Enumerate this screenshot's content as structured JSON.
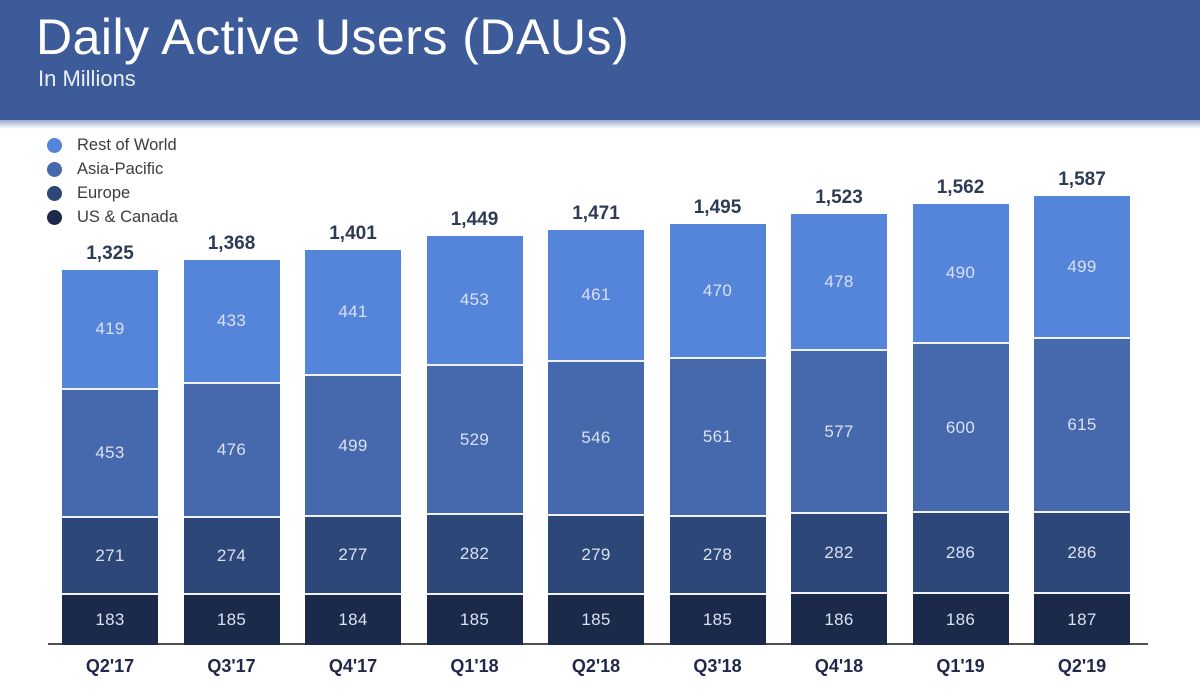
{
  "header": {
    "title": "Daily Active Users (DAUs)",
    "subtitle": "In Millions",
    "background_color": "#3d5b99"
  },
  "legend": {
    "position": "top-left",
    "items": [
      {
        "label": "Rest of World",
        "color": "#5584db"
      },
      {
        "label": "Asia-Pacific",
        "color": "#4668ac"
      },
      {
        "label": "Europe",
        "color": "#2d4878"
      },
      {
        "label": "US & Canada",
        "color": "#1b2a4a"
      }
    ]
  },
  "chart_data": {
    "type": "bar",
    "stacked": true,
    "title": "Daily Active Users (DAUs)",
    "subtitle": "In Millions",
    "unit": "millions of users",
    "xlabel": "",
    "ylabel": "",
    "grid": false,
    "categories": [
      "Q2'17",
      "Q3'17",
      "Q4'17",
      "Q1'18",
      "Q2'18",
      "Q3'18",
      "Q4'18",
      "Q1'19",
      "Q2'19"
    ],
    "series": [
      {
        "name": "Rest of World",
        "color": "#5584db",
        "values": [
          419,
          433,
          441,
          453,
          461,
          470,
          478,
          490,
          499
        ]
      },
      {
        "name": "Asia-Pacific",
        "color": "#4668ac",
        "values": [
          453,
          476,
          499,
          529,
          546,
          561,
          577,
          600,
          615
        ]
      },
      {
        "name": "Europe",
        "color": "#2d4878",
        "values": [
          271,
          274,
          277,
          282,
          279,
          278,
          282,
          286,
          286
        ]
      },
      {
        "name": "US & Canada",
        "color": "#1b2a4a",
        "values": [
          183,
          185,
          184,
          185,
          185,
          185,
          186,
          186,
          187
        ]
      }
    ],
    "totals": [
      1325,
      1368,
      1401,
      1449,
      1471,
      1495,
      1523,
      1562,
      1587
    ],
    "totals_formatted": [
      "1,325",
      "1,368",
      "1,401",
      "1,449",
      "1,471",
      "1,495",
      "1,523",
      "1,562",
      "1,587"
    ],
    "ylim": [
      0,
      1650
    ],
    "stack_order_top_to_bottom": [
      "Rest of World",
      "Asia-Pacific",
      "Europe",
      "US & Canada"
    ],
    "colors": {
      "total_label": "#2e3b55",
      "segment_label": "#d9e1f2",
      "x_axis_label": "#20294a",
      "axis_line": "#4f4f4f"
    }
  }
}
